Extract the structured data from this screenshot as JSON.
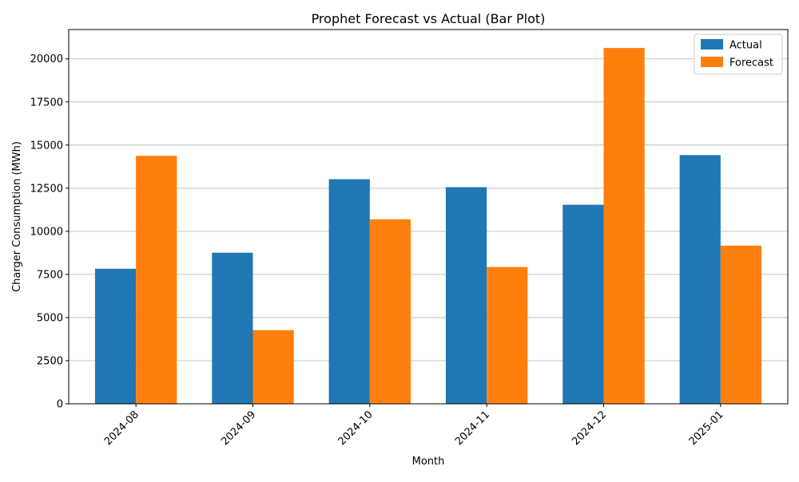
{
  "chart_data": {
    "type": "bar",
    "title": "Prophet Forecast vs Actual (Bar Plot)",
    "xlabel": "Month",
    "ylabel": "Charger Consumption (MWh)",
    "categories": [
      "2024-08",
      "2024-09",
      "2024-10",
      "2024-11",
      "2024-12",
      "2025-01"
    ],
    "series": [
      {
        "name": "Actual",
        "color": "#1f77b4",
        "values": [
          7830,
          8760,
          13020,
          12560,
          11540,
          14420
        ]
      },
      {
        "name": "Forecast",
        "color": "#ff7f0e",
        "values": [
          14380,
          4270,
          10700,
          7930,
          20630,
          9170
        ]
      }
    ],
    "ylim": [
      0,
      21700
    ],
    "yticks": [
      0,
      2500,
      5000,
      7500,
      10000,
      12500,
      15000,
      17500,
      20000
    ],
    "ytick_labels": [
      "0",
      "2500",
      "5000",
      "7500",
      "10000",
      "12500",
      "15000",
      "17500",
      "20000"
    ],
    "grid": "y",
    "legend_position": "top-right"
  }
}
